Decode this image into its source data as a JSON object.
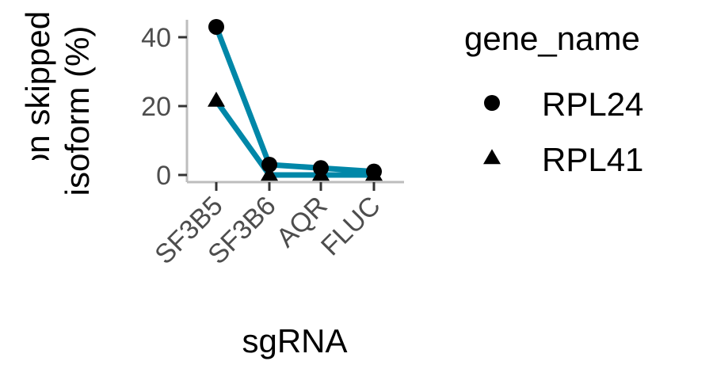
{
  "chart_data": {
    "type": "line",
    "title": "",
    "xlabel": "sgRNA",
    "ylabel_lines": [
      "Exon skipped",
      "isoform (%)"
    ],
    "categories": [
      "SF3B5",
      "SF3B6",
      "AQR",
      "FLUC"
    ],
    "y_ticks": [
      0,
      20,
      40
    ],
    "ylim": [
      -2,
      45
    ],
    "grid": false,
    "legend_position": "right",
    "legend_title": "gene_name",
    "line_color": "#0087a8",
    "axis_color": "#bdbdbd",
    "series": [
      {
        "name": "RPL24",
        "marker": "circle",
        "values": [
          43,
          3,
          2,
          1
        ]
      },
      {
        "name": "RPL41",
        "marker": "triangle",
        "values": [
          21.5,
          0,
          0,
          0
        ]
      }
    ]
  }
}
